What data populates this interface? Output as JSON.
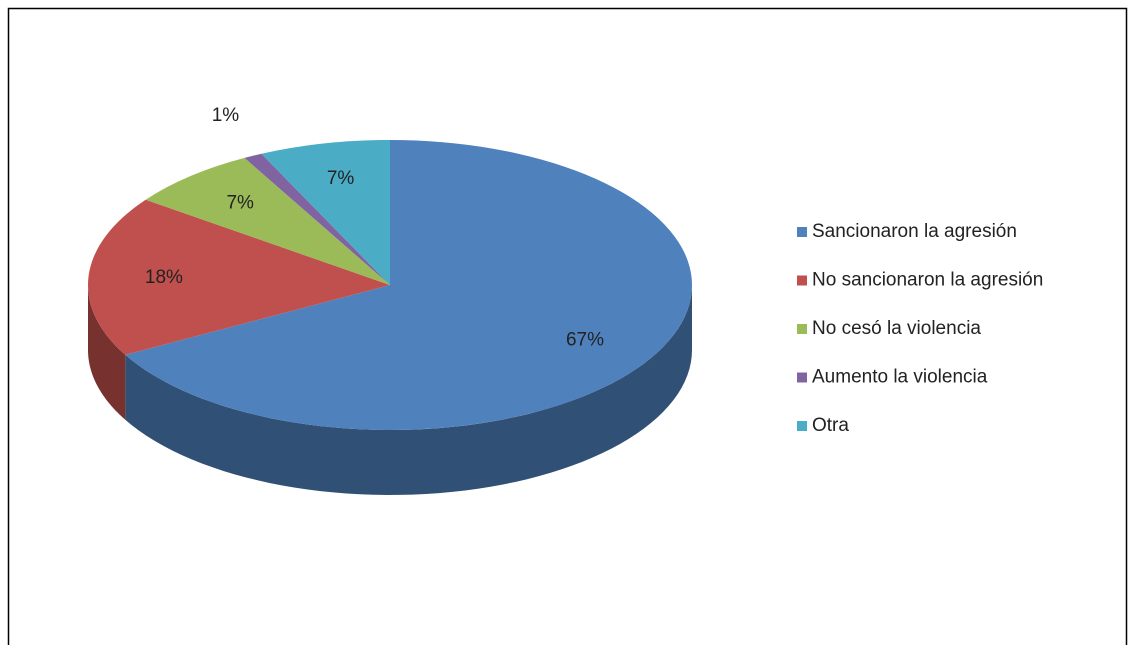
{
  "chart_data": {
    "type": "pie",
    "categories": [
      "Sancionaron la agresión",
      "No sancionaron la agresión",
      "No cesó la violencia",
      "Aumento la violencia",
      "Otra"
    ],
    "values": [
      67,
      18,
      7,
      1,
      7
    ],
    "value_labels": [
      "67%",
      "18%",
      "7%",
      "1%",
      "7%"
    ],
    "colors": [
      "#4f81bd",
      "#c0504d",
      "#9bbb59",
      "#8064a2",
      "#4bacc6"
    ],
    "legend": "right"
  }
}
